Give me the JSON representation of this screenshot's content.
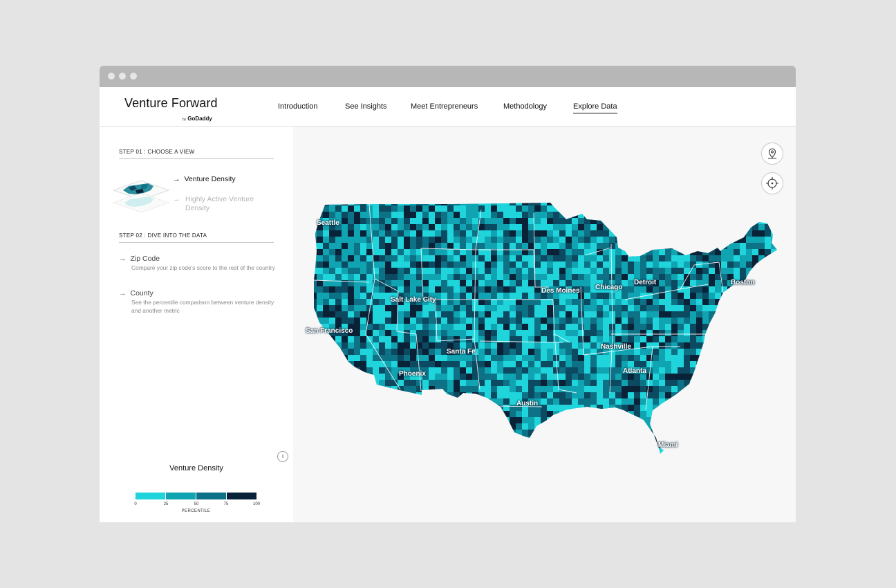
{
  "app": {
    "logo_title": "Venture Forward",
    "logo_by": "by",
    "logo_brand": "GoDaddy"
  },
  "nav": [
    {
      "label": "Introduction"
    },
    {
      "label": "See Insights"
    },
    {
      "label": "Meet Entrepreneurs"
    },
    {
      "label": "Methodology"
    },
    {
      "label": "Explore Data",
      "active": true
    }
  ],
  "sidebar": {
    "step1": "STEP 01 : CHOOSE A VIEW",
    "views": [
      {
        "label": "Venture Density",
        "selected": true
      },
      {
        "label": "Highly Active Venture Density",
        "selected": false
      }
    ],
    "step2": "STEP 02 : DIVE INTO THE DATA",
    "options": [
      {
        "title": "Zip Code",
        "desc": "Compare your zip code's score to the rest of the country"
      },
      {
        "title": "County",
        "desc": "See the percentile comparison between venture density and another metric"
      }
    ]
  },
  "legend": {
    "title": "Venture Density",
    "ticks": [
      "0",
      "25",
      "50",
      "75",
      "100"
    ],
    "caption": "PERCENTILE",
    "colors": [
      "#1fd5db",
      "#10a3b1",
      "#0e7286",
      "#0b4a61",
      "#0a2238"
    ]
  },
  "map": {
    "cities": [
      "Seattle",
      "Salt Lake City",
      "San Francisco",
      "Santa Fe",
      "Phoenix",
      "Des Moines",
      "Chicago",
      "Detroit",
      "Boston",
      "Nashville",
      "Atlanta",
      "Austin",
      "Miami"
    ],
    "icons": [
      "location-pin-icon",
      "crosshair-icon"
    ]
  }
}
